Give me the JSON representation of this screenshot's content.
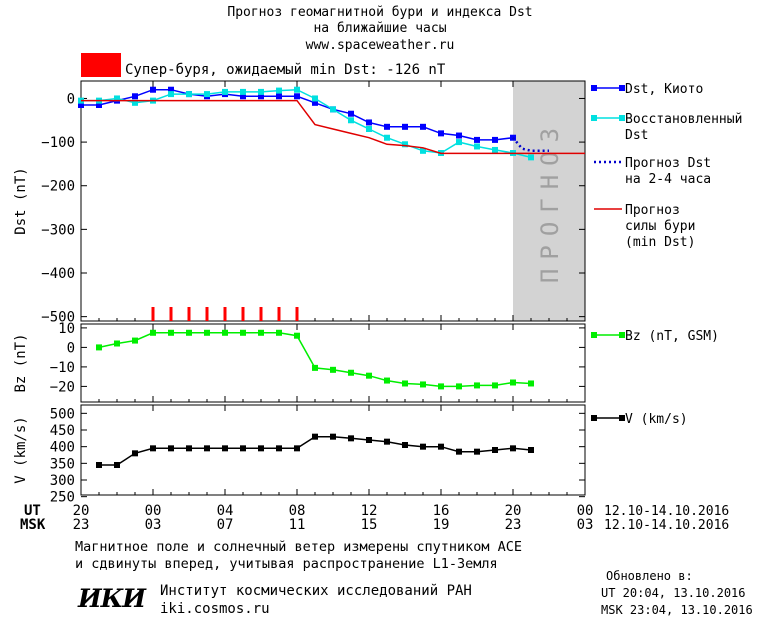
{
  "header": {
    "title_line1": "Прогноз геомагнитной бури и индекса Dst",
    "title_line2": "на ближайшие часы",
    "url": "www.spaceweather.ru"
  },
  "storm_banner": {
    "label": "Супер-буря, ожидаемый min Dst: -126 nT",
    "color": "#ff0000"
  },
  "forecast_zone_label": "ПРОГНОЗ",
  "time_axis": {
    "ut_label": "UT",
    "msk_label": "MSK",
    "ut_ticks": [
      "20",
      "00",
      "04",
      "08",
      "12",
      "16",
      "20",
      "00"
    ],
    "msk_ticks": [
      "23",
      "03",
      "07",
      "11",
      "15",
      "19",
      "23",
      "03"
    ],
    "date_range": "12.10-14.10.2016",
    "tick_hours": [
      -4,
      0,
      4,
      8,
      12,
      16,
      20,
      24
    ]
  },
  "chart_data": [
    {
      "type": "line",
      "ylabel": "Dst (nT)",
      "ylim": [
        -510,
        40
      ],
      "yticks": [
        0,
        -100,
        -200,
        -300,
        -400,
        -500
      ],
      "x_unit": "hours UT from 00:00 13.10.2016",
      "xlim": [
        -4,
        24
      ],
      "forecast_start_hour": 20,
      "series": [
        {
          "name": "Dst, Киото",
          "color": "#0000ff",
          "marker": "square",
          "x": [
            -4,
            -3,
            -2,
            -1,
            0,
            1,
            2,
            3,
            4,
            5,
            6,
            7,
            8,
            9,
            10,
            11,
            12,
            13,
            14,
            15,
            16,
            17,
            18,
            19,
            20
          ],
          "y": [
            -15,
            -15,
            -5,
            5,
            20,
            20,
            10,
            5,
            10,
            5,
            5,
            5,
            5,
            -10,
            -25,
            -35,
            -55,
            -65,
            -65,
            -65,
            -80,
            -85,
            -95,
            -95,
            -90
          ]
        },
        {
          "name": "Восстановленный Dst",
          "color": "#00e0e0",
          "marker": "square",
          "x": [
            -4,
            -3,
            -2,
            -1,
            0,
            1,
            2,
            3,
            4,
            5,
            6,
            7,
            8,
            9,
            10,
            11,
            12,
            13,
            14,
            15,
            16,
            17,
            18,
            19,
            20,
            21
          ],
          "y": [
            -5,
            -5,
            0,
            -10,
            -5,
            10,
            10,
            10,
            15,
            15,
            15,
            18,
            20,
            0,
            -25,
            -50,
            -70,
            -90,
            -105,
            -120,
            -125,
            -100,
            -110,
            -118,
            -125,
            -135
          ]
        },
        {
          "name": "Прогноз Dst на 2-4 часа",
          "color": "#0000cc",
          "style": "dotted",
          "x": [
            20,
            20.5,
            21,
            22
          ],
          "y": [
            -90,
            -115,
            -120,
            -120
          ]
        },
        {
          "name": "Прогноз силы бури (min Dst)",
          "color": "#e00000",
          "x": [
            -4,
            -3,
            -2,
            -1,
            0,
            1,
            2,
            3,
            4,
            5,
            6,
            7,
            8,
            9,
            10,
            11,
            12,
            13,
            14,
            15,
            16,
            17,
            18,
            19,
            20,
            21,
            22,
            23,
            24
          ],
          "y": [
            -5,
            -5,
            -5,
            -5,
            -5,
            -5,
            -5,
            -5,
            -5,
            -5,
            -5,
            -5,
            -5,
            -60,
            -70,
            -80,
            -90,
            -105,
            -108,
            -113,
            -126,
            -126,
            -126,
            -126,
            -126,
            -126,
            -126,
            -126,
            -126
          ]
        }
      ],
      "storm_marker_hours": [
        0,
        1,
        2,
        3,
        4,
        5,
        6,
        7,
        8
      ]
    },
    {
      "type": "line",
      "ylabel": "Bz (nT)",
      "ylim": [
        -28,
        12
      ],
      "yticks": [
        10,
        0,
        -10,
        -20
      ],
      "series": [
        {
          "name": "Bz (nT, GSM)",
          "color": "#00ee00",
          "marker": "square",
          "x": [
            -3,
            -2,
            -1,
            0,
            1,
            2,
            3,
            4,
            5,
            6,
            7,
            8,
            9,
            10,
            11,
            12,
            13,
            14,
            15,
            16,
            17,
            18,
            19,
            20,
            21
          ],
          "y": [
            0,
            2,
            3.5,
            7.5,
            7.5,
            7.5,
            7.5,
            7.5,
            7.5,
            7.5,
            7.5,
            6,
            -10.5,
            -11.5,
            -13,
            -14.5,
            -17,
            -18.5,
            -19,
            -20,
            -20,
            -19.5,
            -19.5,
            -18,
            -18.5
          ]
        }
      ]
    },
    {
      "type": "line",
      "ylabel": "V (km/s)",
      "ylim": [
        255,
        525
      ],
      "yticks": [
        500,
        450,
        400,
        350,
        300,
        250
      ],
      "extra_tick_labels": [
        500,
        450,
        400,
        350,
        300,
        250
      ],
      "series": [
        {
          "name": "V (km/s)",
          "color": "#000000",
          "marker": "square",
          "x": [
            -3,
            -2,
            -1,
            0,
            1,
            2,
            3,
            4,
            5,
            6,
            7,
            8,
            9,
            10,
            11,
            12,
            13,
            14,
            15,
            16,
            17,
            18,
            19,
            20,
            21
          ],
          "y": [
            345,
            345,
            380,
            395,
            395,
            395,
            395,
            395,
            395,
            395,
            395,
            395,
            430,
            430,
            425,
            420,
            415,
            405,
            400,
            400,
            385,
            385,
            390,
            395,
            390
          ]
        }
      ]
    }
  ],
  "legend": {
    "dst_kyoto": "Dst, Киото",
    "dst_restored_1": "Восстановленный",
    "dst_restored_2": "Dst",
    "dst_forecast_1": "Прогноз Dst",
    "dst_forecast_2": "на 2-4 часа",
    "storm_1": "Прогноз",
    "storm_2": "силы бури",
    "storm_3": "(min Dst)",
    "bz": "Bz (nT, GSM)",
    "v": "V (km/s)"
  },
  "footer": {
    "line1": "Магнитное поле и солнечный ветер измерены спутником ACE",
    "line2": "и сдвинуты вперед, учитывая распространение L1-Земля",
    "logo_text": "ИКИ",
    "institute": "Институт космических исследований РАН",
    "site": "iki.cosmos.ru",
    "updated_label": "Обновлено в:",
    "updated_ut": "UT  20:04, 13.10.2016",
    "updated_msk": "MSK 23:04, 13.10.2016"
  }
}
